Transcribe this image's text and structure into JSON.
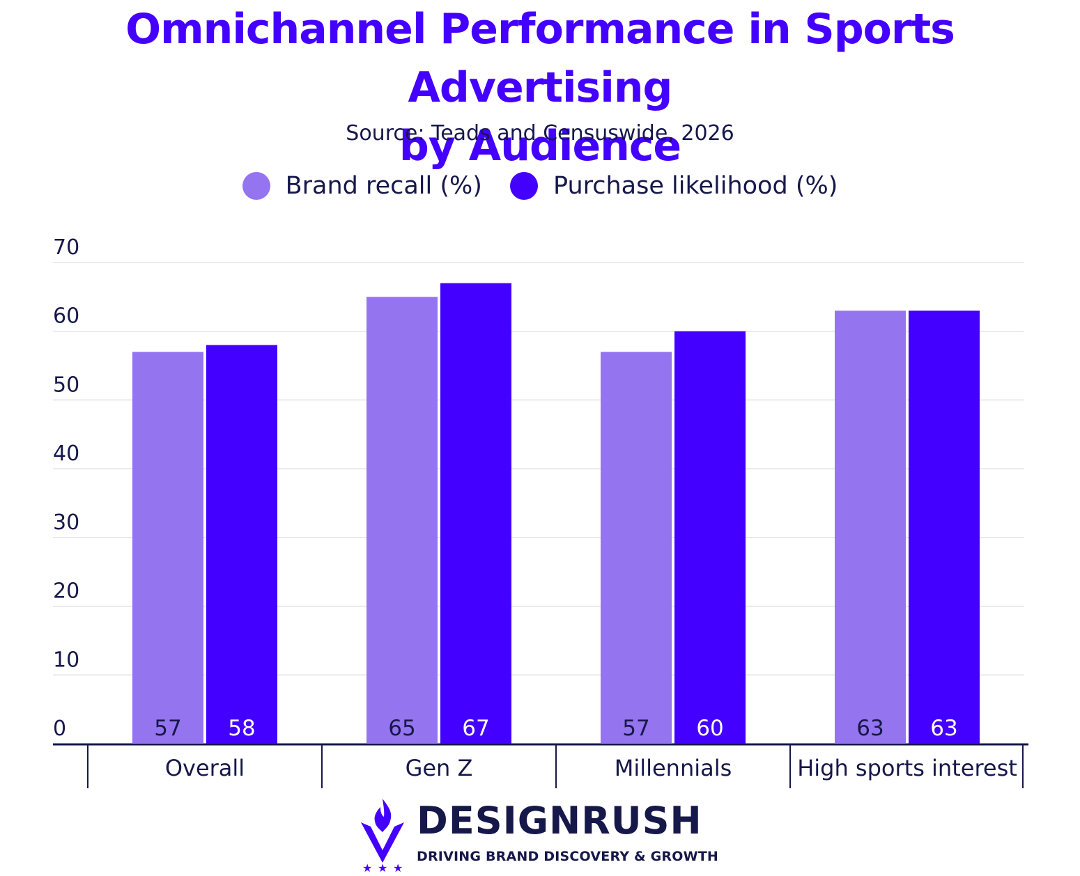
{
  "colors": {
    "brand_recall": "#9574f0",
    "purchase_likelihood": "#4400ff",
    "title": "#4400ff",
    "text": "#16184a",
    "grid": "#e3e3e8"
  },
  "legend": {
    "items": [
      {
        "label": "Brand recall (%)",
        "color": "#9574f0"
      },
      {
        "label": "Purchase likelihood (%)",
        "color": "#4400ff"
      }
    ]
  },
  "chart_data": {
    "type": "bar",
    "title": "Omnichannel Performance in Sports Advertising by Audience",
    "subtitle": "Source: Teads and Censuswide, 2026",
    "categories": [
      "Overall",
      "Gen Z",
      "Millennials",
      "High sports interest"
    ],
    "series": [
      {
        "name": "Brand recall (%)",
        "values": [
          57,
          65,
          57,
          63
        ],
        "color": "#9574f0"
      },
      {
        "name": "Purchase likelihood (%)",
        "values": [
          58,
          67,
          60,
          63
        ],
        "color": "#4400ff"
      }
    ],
    "ylim": [
      0,
      70
    ],
    "yticks": [
      0,
      10,
      20,
      30,
      40,
      50,
      60,
      70
    ],
    "grid": true,
    "legend_position": "top-center"
  },
  "logo": {
    "wordmark": "DESIGNRUSH",
    "tagline": "DRIVING BRAND DISCOVERY & GROWTH",
    "icon": "flame-shield-icon"
  }
}
